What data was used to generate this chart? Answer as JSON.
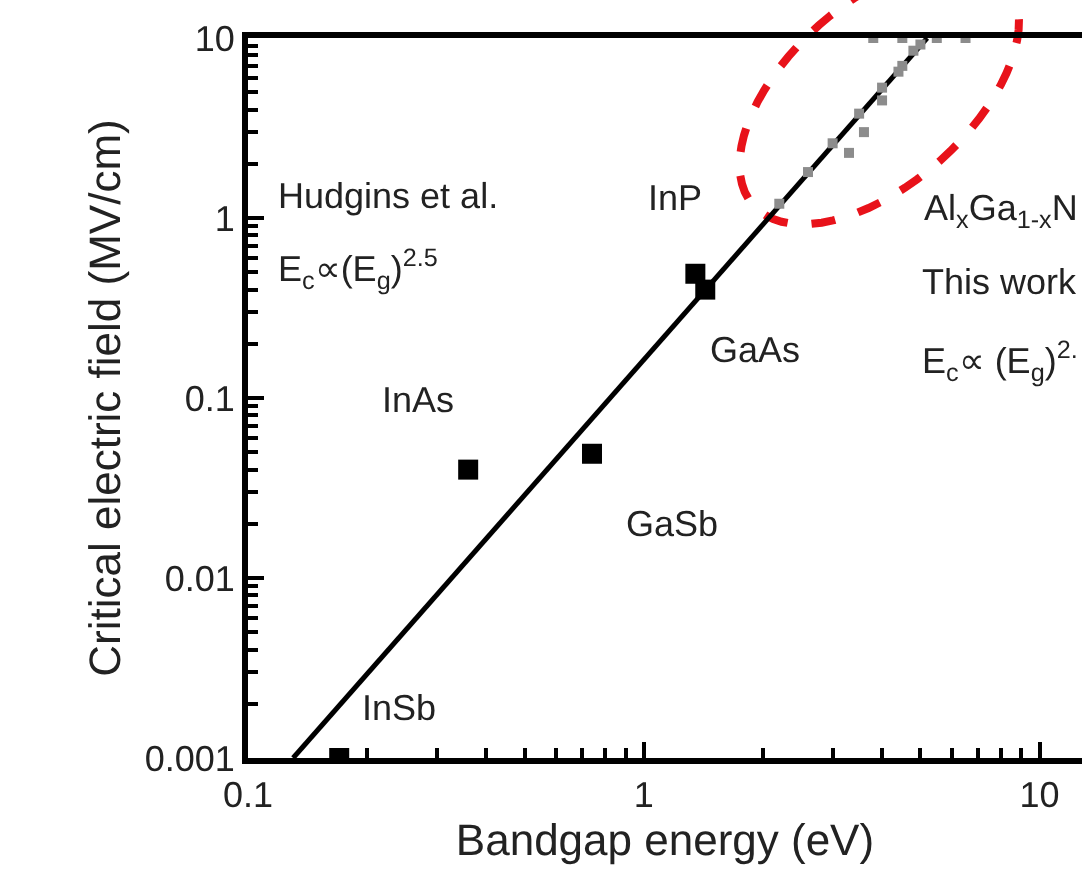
{
  "chart_data": {
    "type": "scatter",
    "xlabel": "Bandgap energy (eV)",
    "ylabel": "Critical electric field (MV/cm)",
    "log": "xy",
    "xlim": [
      0.1,
      12.8
    ],
    "ylim": [
      0.001,
      10
    ],
    "xticks": [
      0.1,
      1,
      10
    ],
    "yticks": [
      0.001,
      0.01,
      0.1,
      1,
      10
    ],
    "grid": false,
    "marker": "square",
    "series": [
      {
        "color": "#000000",
        "x": [
          0.17,
          0.36,
          0.74,
          1.35,
          1.43
        ],
        "values": [
          0.001,
          0.04,
          0.049,
          0.49,
          0.4
        ]
      },
      {
        "type": "line",
        "color": "#000000",
        "line_style": "solid",
        "marker": "none",
        "x": [
          0.13,
          5.2
        ],
        "values": [
          0.001,
          10
        ]
      },
      {
        "color": "#8c8c8c",
        "x": [
          2.2,
          2.6,
          3.0,
          3.5,
          4.0,
          4.5,
          5.0,
          3.8,
          4.5,
          5.5,
          6.5,
          3.3,
          3.6,
          4.0,
          4.4,
          4.8
        ],
        "values": [
          1.2,
          1.8,
          2.6,
          3.8,
          5.3,
          7,
          9.2,
          10,
          10,
          10,
          10,
          2.3,
          3,
          4.5,
          6.5,
          8.5
        ]
      }
    ],
    "annotations": [
      {
        "text": "InSb",
        "x": 0.17,
        "y": 0.001
      },
      {
        "text": "InAs",
        "x": 0.36,
        "y": 0.04
      },
      {
        "text": "GaSb",
        "x": 0.74,
        "y": 0.049
      },
      {
        "text": "InP",
        "x": 1.35,
        "y": 0.49
      },
      {
        "text": "GaAs",
        "x": 1.43,
        "y": 0.4
      },
      "Hudgins et al.",
      "E$_{c}$∝(E$_{g}$)$^{2.5}$",
      "Al$_{x}$Ga$_{1-x}$N",
      "This work",
      "E$_{c}$∝ (E$_{g}$)$^{2.}$"
    ]
  }
}
